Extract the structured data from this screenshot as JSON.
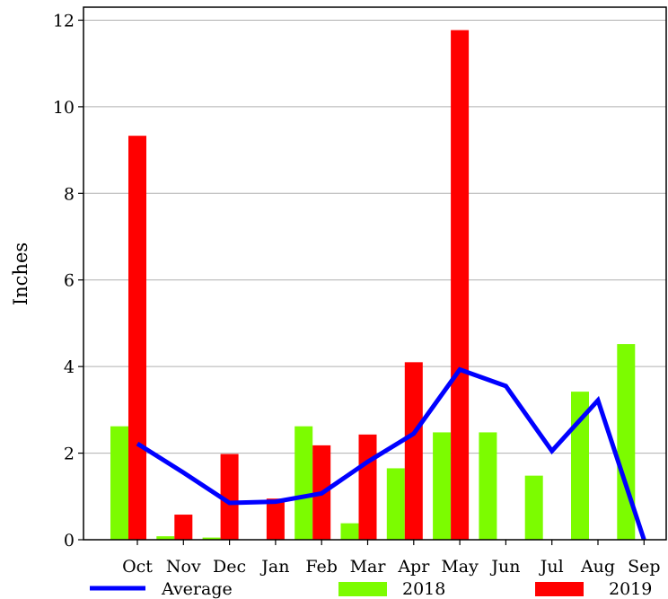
{
  "chart_data": {
    "type": "bar",
    "title": "",
    "xlabel": "",
    "ylabel": "Inches",
    "ylim": [
      0,
      12.3
    ],
    "yticks": [
      0,
      2,
      4,
      6,
      8,
      10,
      12
    ],
    "grid": "horizontal",
    "legend_position": "bottom",
    "categories": [
      "Oct",
      "Nov",
      "Dec",
      "Jan",
      "Feb",
      "Mar",
      "Apr",
      "May",
      "Jun",
      "Jul",
      "Aug",
      "Sep"
    ],
    "series": [
      {
        "name": "2018",
        "kind": "bar",
        "color": "#7cfc00",
        "values": [
          2.62,
          0.08,
          0.05,
          0,
          2.62,
          0.38,
          1.65,
          2.48,
          2.48,
          1.48,
          3.42,
          4.52
        ]
      },
      {
        "name": "2019",
        "kind": "bar",
        "color": "#ff0000",
        "values": [
          9.33,
          0.58,
          1.98,
          0.95,
          2.18,
          2.43,
          4.1,
          11.77,
          0,
          0,
          0,
          0
        ]
      },
      {
        "name": "Average",
        "kind": "line",
        "color": "#0000ff",
        "values": [
          2.22,
          1.55,
          0.85,
          0.88,
          1.07,
          1.8,
          2.45,
          3.93,
          3.55,
          2.05,
          3.22,
          0
        ]
      }
    ]
  }
}
